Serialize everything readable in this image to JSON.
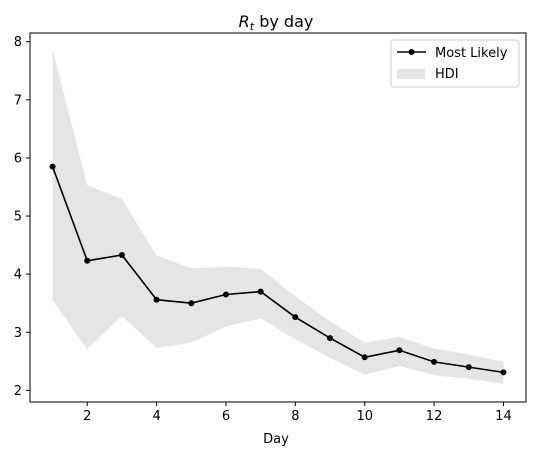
{
  "chart_data": {
    "type": "line",
    "title_main": "R",
    "title_sub": "t",
    "title_rest": " by day",
    "xlabel": "Day",
    "ylabel": "",
    "x": [
      1,
      2,
      3,
      4,
      5,
      6,
      7,
      8,
      9,
      10,
      11,
      12,
      13,
      14
    ],
    "series": [
      {
        "name": "Most Likely",
        "values": [
          5.85,
          4.23,
          4.33,
          3.56,
          3.5,
          3.65,
          3.7,
          3.26,
          2.9,
          2.57,
          2.69,
          2.49,
          2.4,
          2.31
        ],
        "color": "#000000",
        "marker": "circle"
      }
    ],
    "band": {
      "name": "HDI",
      "lower": [
        3.55,
        2.71,
        3.28,
        2.73,
        2.82,
        3.1,
        3.24,
        2.88,
        2.56,
        2.27,
        2.42,
        2.26,
        2.2,
        2.11
      ],
      "upper": [
        7.87,
        5.53,
        5.29,
        4.32,
        4.1,
        4.13,
        4.09,
        3.62,
        3.19,
        2.82,
        2.92,
        2.72,
        2.62,
        2.49
      ],
      "color": "#e5e5e5"
    },
    "xlim": [
      0.35,
      14.65
    ],
    "ylim": [
      1.8,
      8.15
    ],
    "xticks": [
      2,
      4,
      6,
      8,
      10,
      12,
      14
    ],
    "yticks": [
      2,
      3,
      4,
      5,
      6,
      7,
      8
    ],
    "legend": {
      "placement": "top-right",
      "entries": [
        "Most Likely",
        "HDI"
      ]
    },
    "grid": false
  }
}
